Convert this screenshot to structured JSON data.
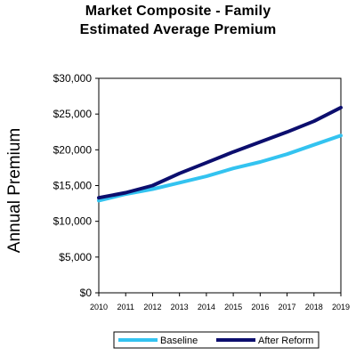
{
  "chart_data": {
    "type": "line",
    "title_lines": [
      "Market Composite - Family",
      "Estimated Average Premium"
    ],
    "xlabel": "",
    "ylabel": "Annual Premium",
    "x": [
      2010,
      2011,
      2012,
      2013,
      2014,
      2015,
      2016,
      2017,
      2018,
      2019
    ],
    "x_tick_labels": [
      "2010",
      "2011",
      "2012",
      "2013",
      "2014",
      "2015",
      "2016",
      "2017",
      "2018",
      "2019"
    ],
    "ylim": [
      0,
      30000
    ],
    "y_ticks": [
      0,
      5000,
      10000,
      15000,
      20000,
      25000,
      30000
    ],
    "y_tick_labels": [
      "$0",
      "$5,000",
      "$10,000",
      "$15,000",
      "$20,000",
      "$25,000",
      "$30,000"
    ],
    "grid": false,
    "legend_position": "bottom",
    "series": [
      {
        "name": "Baseline",
        "color": "#33c3f0",
        "values": [
          12900,
          13800,
          14500,
          15400,
          16300,
          17400,
          18300,
          19400,
          20700,
          22000
        ]
      },
      {
        "name": "After Reform",
        "color": "#0c0e6e",
        "values": [
          13300,
          14000,
          15000,
          16700,
          18200,
          19700,
          21100,
          22500,
          24000,
          25900
        ]
      }
    ]
  }
}
